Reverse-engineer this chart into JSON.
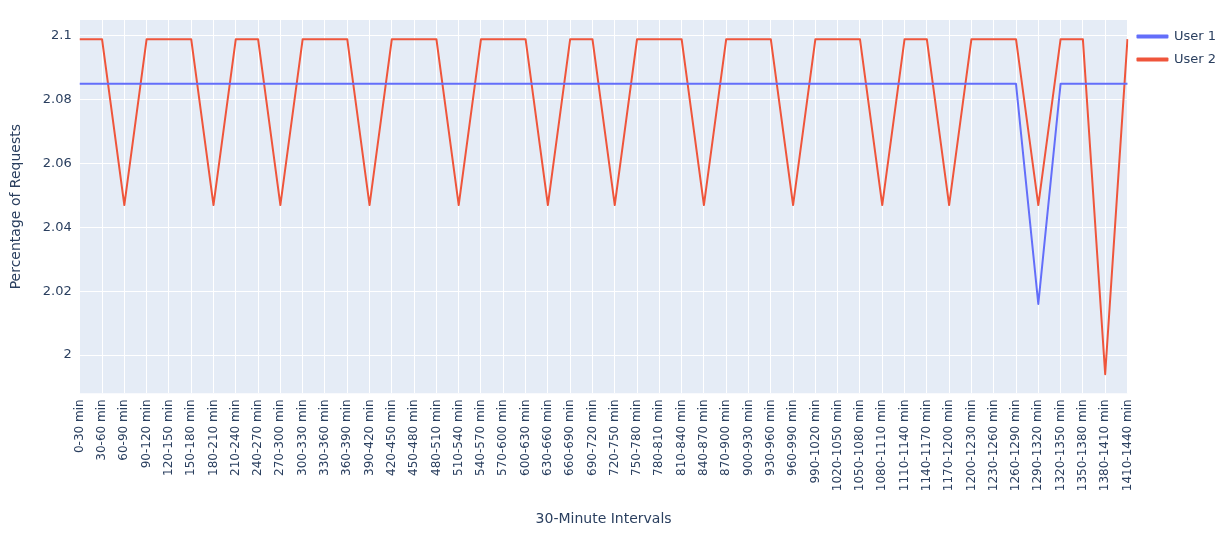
{
  "chart_data": {
    "type": "line",
    "xlabel": "30-Minute Intervals",
    "ylabel": "Percentage of Requests",
    "categories": [
      "0-30 min",
      "30-60 min",
      "60-90 min",
      "90-120 min",
      "120-150 min",
      "150-180 min",
      "180-210 min",
      "210-240 min",
      "240-270 min",
      "270-300 min",
      "300-330 min",
      "330-360 min",
      "360-390 min",
      "390-420 min",
      "420-450 min",
      "450-480 min",
      "480-510 min",
      "510-540 min",
      "540-570 min",
      "570-600 min",
      "600-630 min",
      "630-660 min",
      "660-690 min",
      "690-720 min",
      "720-750 min",
      "750-780 min",
      "780-810 min",
      "810-840 min",
      "840-870 min",
      "870-900 min",
      "900-930 min",
      "930-960 min",
      "960-990 min",
      "990-1020 min",
      "1020-1050 min",
      "1050-1080 min",
      "1080-1110 min",
      "1110-1140 min",
      "1140-1170 min",
      "1170-1200 min",
      "1200-1230 min",
      "1230-1260 min",
      "1260-1290 min",
      "1290-1320 min",
      "1320-1350 min",
      "1350-1380 min",
      "1380-1410 min",
      "1410-1440 min"
    ],
    "series": [
      {
        "name": "User 1",
        "color": "#636efa",
        "values": [
          2.085,
          2.085,
          2.085,
          2.085,
          2.085,
          2.085,
          2.085,
          2.085,
          2.085,
          2.085,
          2.085,
          2.085,
          2.085,
          2.085,
          2.085,
          2.085,
          2.085,
          2.085,
          2.085,
          2.085,
          2.085,
          2.085,
          2.085,
          2.085,
          2.085,
          2.085,
          2.085,
          2.085,
          2.085,
          2.085,
          2.085,
          2.085,
          2.085,
          2.085,
          2.085,
          2.085,
          2.085,
          2.085,
          2.085,
          2.085,
          2.085,
          2.085,
          2.085,
          2.016,
          2.085,
          2.085,
          2.085,
          2.085
        ]
      },
      {
        "name": "User 2",
        "color": "#ef553b",
        "values": [
          2.099,
          2.099,
          2.047,
          2.099,
          2.099,
          2.099,
          2.047,
          2.099,
          2.099,
          2.047,
          2.099,
          2.099,
          2.099,
          2.047,
          2.099,
          2.099,
          2.099,
          2.047,
          2.099,
          2.099,
          2.099,
          2.047,
          2.099,
          2.099,
          2.047,
          2.099,
          2.099,
          2.099,
          2.047,
          2.099,
          2.099,
          2.099,
          2.047,
          2.099,
          2.099,
          2.099,
          2.047,
          2.099,
          2.099,
          2.047,
          2.099,
          2.099,
          2.099,
          2.047,
          2.099,
          2.099,
          1.994,
          2.099
        ]
      }
    ],
    "ylim": [
      1.988,
      2.105
    ],
    "yticks": [
      2,
      2.02,
      2.04,
      2.06,
      2.08,
      2.1
    ],
    "grid": true,
    "legend": "top right",
    "marker": "none",
    "line_style": "solid"
  }
}
